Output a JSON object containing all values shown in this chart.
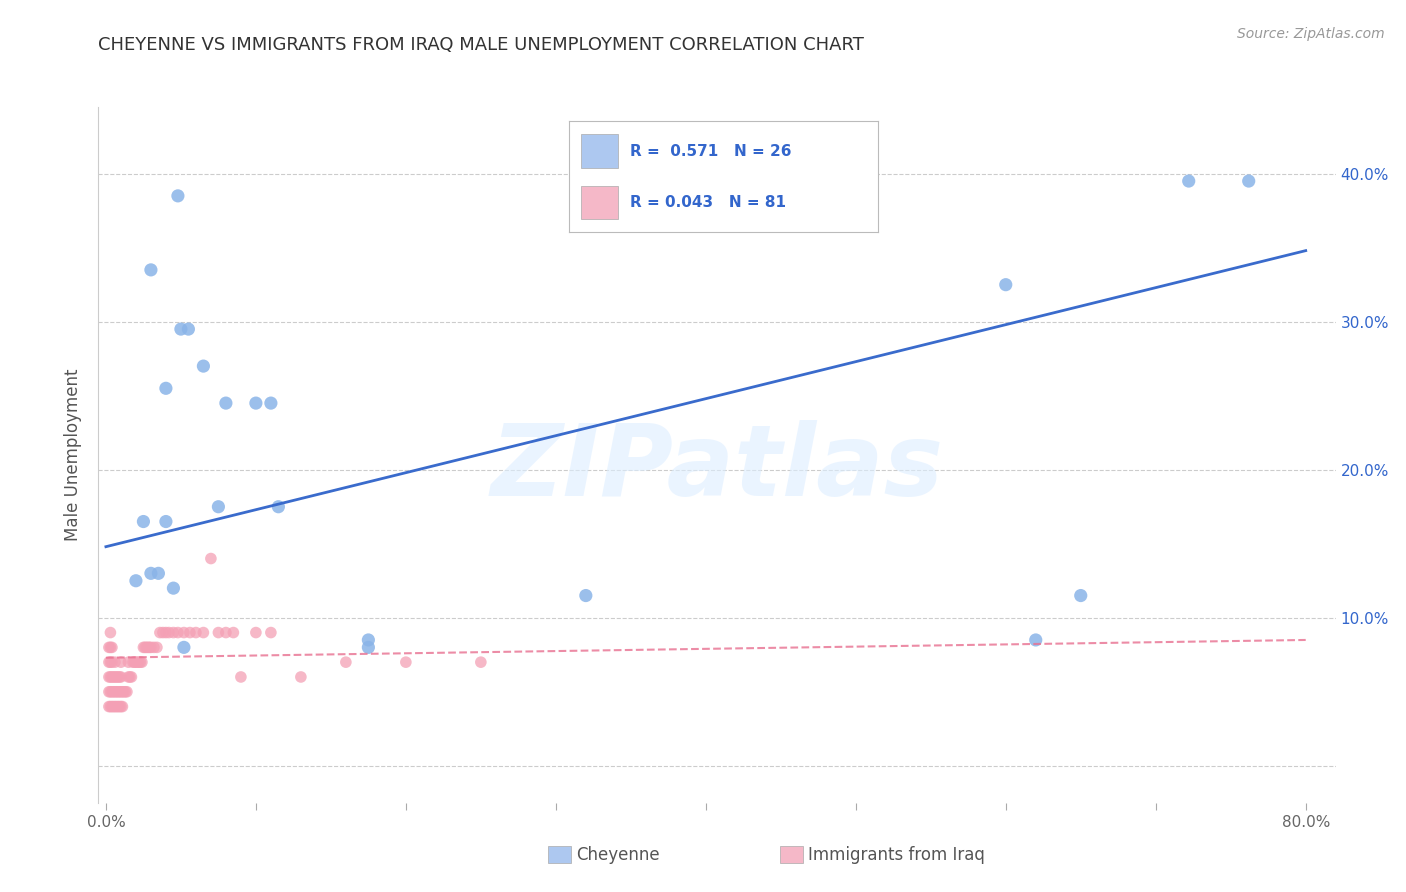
{
  "title": "CHEYENNE VS IMMIGRANTS FROM IRAQ MALE UNEMPLOYMENT CORRELATION CHART",
  "source": "Source: ZipAtlas.com",
  "ylabel": "Male Unemployment",
  "ytick_values": [
    0,
    0.1,
    0.2,
    0.3,
    0.4
  ],
  "xtick_values": [
    0,
    0.1,
    0.2,
    0.3,
    0.4,
    0.5,
    0.6,
    0.7,
    0.8
  ],
  "xlim": [
    -0.005,
    0.82
  ],
  "ylim": [
    -0.025,
    0.445
  ],
  "cheyenne_scatter_x": [
    0.02,
    0.03,
    0.05,
    0.055,
    0.065,
    0.04,
    0.075,
    0.11,
    0.115,
    0.025,
    0.04,
    0.175,
    0.32,
    0.65,
    0.6,
    0.762,
    0.722,
    0.1,
    0.048,
    0.08,
    0.03,
    0.035,
    0.045,
    0.052,
    0.175,
    0.62
  ],
  "cheyenne_scatter_y": [
    0.125,
    0.335,
    0.295,
    0.295,
    0.27,
    0.255,
    0.175,
    0.245,
    0.175,
    0.165,
    0.165,
    0.085,
    0.115,
    0.115,
    0.325,
    0.395,
    0.395,
    0.245,
    0.385,
    0.245,
    0.13,
    0.13,
    0.12,
    0.08,
    0.08,
    0.085
  ],
  "iraq_scatter_x": [
    0.002,
    0.002,
    0.002,
    0.002,
    0.002,
    0.003,
    0.003,
    0.003,
    0.003,
    0.003,
    0.003,
    0.004,
    0.004,
    0.004,
    0.004,
    0.004,
    0.005,
    0.005,
    0.005,
    0.006,
    0.006,
    0.006,
    0.006,
    0.007,
    0.007,
    0.007,
    0.008,
    0.008,
    0.008,
    0.009,
    0.009,
    0.009,
    0.01,
    0.01,
    0.01,
    0.01,
    0.011,
    0.011,
    0.012,
    0.013,
    0.014,
    0.015,
    0.015,
    0.016,
    0.017,
    0.018,
    0.019,
    0.02,
    0.021,
    0.022,
    0.023,
    0.024,
    0.025,
    0.026,
    0.027,
    0.028,
    0.029,
    0.03,
    0.032,
    0.034,
    0.036,
    0.038,
    0.04,
    0.042,
    0.045,
    0.048,
    0.052,
    0.056,
    0.06,
    0.065,
    0.07,
    0.075,
    0.08,
    0.085,
    0.09,
    0.1,
    0.11,
    0.13,
    0.16,
    0.2,
    0.25
  ],
  "iraq_scatter_y": [
    0.04,
    0.05,
    0.06,
    0.07,
    0.08,
    0.04,
    0.05,
    0.06,
    0.07,
    0.08,
    0.09,
    0.04,
    0.05,
    0.06,
    0.07,
    0.08,
    0.04,
    0.05,
    0.06,
    0.04,
    0.05,
    0.06,
    0.07,
    0.04,
    0.05,
    0.06,
    0.04,
    0.05,
    0.06,
    0.04,
    0.05,
    0.06,
    0.04,
    0.05,
    0.06,
    0.07,
    0.04,
    0.05,
    0.05,
    0.05,
    0.05,
    0.06,
    0.07,
    0.06,
    0.06,
    0.07,
    0.07,
    0.07,
    0.07,
    0.07,
    0.07,
    0.07,
    0.08,
    0.08,
    0.08,
    0.08,
    0.08,
    0.08,
    0.08,
    0.08,
    0.09,
    0.09,
    0.09,
    0.09,
    0.09,
    0.09,
    0.09,
    0.09,
    0.09,
    0.09,
    0.14,
    0.09,
    0.09,
    0.09,
    0.06,
    0.09,
    0.09,
    0.06,
    0.07,
    0.07,
    0.07
  ],
  "cheyenne_line_x": [
    0.0,
    0.8
  ],
  "cheyenne_line_y": [
    0.148,
    0.348
  ],
  "iraq_line_x": [
    0.0,
    0.8
  ],
  "iraq_line_y": [
    0.073,
    0.085
  ],
  "cheyenne_color": "#8ab4e8",
  "iraq_color": "#f4a0b5",
  "cheyenne_line_color": "#3a6bcc",
  "iraq_line_color": "#e87090",
  "background_color": "#ffffff",
  "watermark_text": "ZIPatlas",
  "grid_color": "#cccccc",
  "legend_r1": "R =  0.571   N = 26",
  "legend_r2": "R = 0.043   N = 81",
  "legend_color1": "#adc8f0",
  "legend_color2": "#f5b8c8",
  "legend_text_color": "#3366cc",
  "bottom_label1": "Cheyenne",
  "bottom_label2": "Immigrants from Iraq"
}
